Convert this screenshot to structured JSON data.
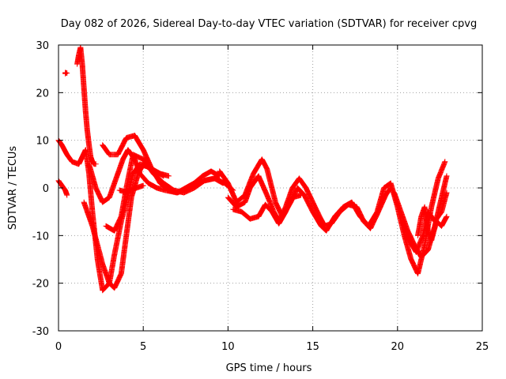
{
  "chart_data": {
    "type": "scatter",
    "title": "Day 082 of 2026, Sidereal Day-to-day VTEC variation (SDTVAR) for receiver cpvg",
    "xlabel": "GPS time / hours",
    "ylabel": "SDTVAR / TECUs",
    "xlim": [
      0,
      25
    ],
    "ylim": [
      -30,
      30
    ],
    "xticks": [
      0,
      5,
      10,
      15,
      20,
      25
    ],
    "yticks": [
      -30,
      -20,
      -10,
      0,
      10,
      20,
      30
    ],
    "grid": true,
    "marker": "+",
    "color": "#ff0000",
    "series": [
      {
        "name": "trace-1",
        "x": [
          0.0,
          0.2,
          0.5,
          0.8,
          1.2,
          1.4,
          1.6,
          1.8,
          2.0,
          2.3,
          2.6,
          3.0,
          3.3,
          3.7,
          4.1,
          4.4,
          4.8,
          5.2,
          5.7,
          6.2
        ],
        "y": [
          10.0,
          9.0,
          7.0,
          5.5,
          5.0,
          6.5,
          8.0,
          3.0,
          -5.0,
          -15.0,
          -21.5,
          -20.0,
          -14.0,
          -7.0,
          -1.5,
          3.0,
          5.0,
          4.5,
          3.5,
          2.5
        ]
      },
      {
        "name": "trace-2",
        "x": [
          0.0,
          0.2,
          0.4,
          0.5
        ],
        "y": [
          1.5,
          0.5,
          -0.5,
          -1.5
        ]
      },
      {
        "name": "trace-3",
        "x": [
          1.1,
          1.2,
          1.3,
          1.4,
          1.5,
          1.6,
          1.7,
          1.8,
          1.9,
          2.0,
          2.1,
          2.2
        ],
        "y": [
          26.0,
          28.0,
          29.5,
          26.0,
          21.0,
          16.0,
          12.0,
          9.0,
          6.5,
          5.5,
          5.0,
          5.0
        ]
      },
      {
        "name": "trace-4",
        "x": [
          1.5,
          1.7,
          2.0,
          2.3,
          2.6,
          3.0,
          3.3,
          3.7,
          4.0,
          4.3,
          4.7,
          5.0,
          5.5,
          6.0,
          6.5
        ],
        "y": [
          -3.0,
          -5.0,
          -8.0,
          -12.0,
          -16.0,
          -20.0,
          -21.0,
          -18.0,
          -10.0,
          -2.0,
          3.0,
          5.0,
          4.0,
          3.0,
          2.5
        ]
      },
      {
        "name": "trace-5",
        "x": [
          1.8,
          2.2,
          2.6,
          3.0,
          3.4,
          3.8,
          4.1,
          4.5,
          4.8,
          5.3,
          5.8,
          6.3,
          7.0,
          7.8,
          8.5,
          9.2,
          9.8,
          10.3
        ],
        "y": [
          5.0,
          0.0,
          -3.0,
          -2.0,
          2.0,
          6.0,
          8.0,
          6.0,
          3.0,
          1.0,
          0.0,
          -0.5,
          -1.0,
          0.0,
          1.5,
          2.0,
          1.0,
          -0.5
        ]
      },
      {
        "name": "trace-6",
        "x": [
          2.6,
          3.0,
          3.5,
          4.0,
          4.5,
          5.0,
          5.5,
          6.0,
          6.5,
          7.0,
          7.5,
          8.0,
          8.5,
          9.0,
          9.5
        ],
        "y": [
          9.0,
          7.0,
          7.0,
          10.5,
          11.0,
          8.0,
          4.0,
          1.0,
          -0.5,
          -1.0,
          0.0,
          1.0,
          2.5,
          3.5,
          2.5
        ]
      },
      {
        "name": "trace-7",
        "x": [
          2.8,
          3.3,
          3.7,
          4.0,
          4.4,
          5.0,
          5.6,
          6.2,
          6.8,
          7.4,
          8.0,
          8.6,
          9.2,
          9.7
        ],
        "y": [
          -8.0,
          -9.0,
          -6.0,
          0.0,
          7.0,
          6.0,
          3.0,
          1.0,
          -0.5,
          -1.0,
          0.0,
          1.5,
          2.0,
          1.0
        ]
      },
      {
        "name": "trace-8",
        "x": [
          3.6,
          3.9,
          4.2,
          4.6,
          5.0
        ],
        "y": [
          -0.5,
          -0.8,
          -0.5,
          0.0,
          0.5
        ]
      },
      {
        "name": "trace-9",
        "x": [
          9.5,
          10.0,
          10.5,
          11.0,
          11.5,
          12.0,
          12.3,
          12.8,
          13.2,
          13.7,
          14.1,
          14.5,
          15.0,
          15.5,
          15.8,
          16.3,
          16.8,
          17.3,
          17.8,
          18.3,
          18.8,
          19.2,
          19.6,
          20.0,
          20.4,
          20.8,
          21.2,
          21.6,
          22.0,
          22.4,
          22.8
        ],
        "y": [
          3.5,
          1.0,
          -3.0,
          -1.5,
          3.0,
          6.0,
          4.0,
          -3.0,
          -6.0,
          -3.0,
          0.0,
          -1.5,
          -5.0,
          -8.0,
          -9.0,
          -6.0,
          -4.0,
          -3.0,
          -6.0,
          -8.0,
          -5.0,
          0.0,
          1.0,
          -4.0,
          -10.0,
          -15.0,
          -18.0,
          -12.0,
          -4.0,
          2.0,
          5.5
        ]
      },
      {
        "name": "trace-10",
        "x": [
          10.0,
          10.5,
          11.0,
          11.3,
          11.8,
          12.3,
          12.7,
          13.0,
          13.4,
          13.8,
          14.2,
          14.6,
          15.0,
          15.4,
          15.7,
          16.1,
          16.6,
          17.1,
          17.6,
          18.0,
          18.4,
          18.8,
          19.3,
          19.6
        ],
        "y": [
          -2.0,
          -4.0,
          -3.0,
          0.0,
          2.5,
          -1.5,
          -5.0,
          -7.0,
          -4.0,
          0.0,
          2.0,
          0.0,
          -3.0,
          -6.0,
          -8.0,
          -7.5,
          -5.0,
          -3.5,
          -4.0,
          -7.0,
          -8.5,
          -5.5,
          -1.5,
          0.0
        ]
      },
      {
        "name": "trace-11",
        "x": [
          10.3,
          10.8,
          11.3,
          11.8,
          12.2,
          12.6,
          13.0,
          13.4,
          13.8,
          14.3
        ],
        "y": [
          -4.5,
          -5.0,
          -6.5,
          -6.0,
          -3.5,
          -5.0,
          -7.5,
          -5.0,
          -2.0,
          -1.5
        ]
      },
      {
        "name": "trace-12",
        "x": [
          19.8,
          20.2,
          20.6,
          21.0,
          21.4,
          21.8,
          22.2,
          22.6,
          22.9
        ],
        "y": [
          -1.0,
          -5.0,
          -9.0,
          -12.0,
          -14.5,
          -13.0,
          -8.0,
          -2.0,
          2.5
        ]
      },
      {
        "name": "trace-13",
        "x": [
          20.3,
          20.7,
          21.1,
          21.5,
          21.8,
          22.2,
          22.6,
          22.9
        ],
        "y": [
          -7.0,
          -11.0,
          -13.5,
          -10.0,
          -5.0,
          -7.0,
          -5.0,
          -1.0
        ]
      },
      {
        "name": "trace-14",
        "x": [
          21.2,
          21.4,
          21.6,
          21.8,
          22.0,
          22.3,
          22.6,
          22.9
        ],
        "y": [
          -10.0,
          -6.0,
          -4.0,
          -9.0,
          -11.0,
          -7.0,
          -8.0,
          -6.0
        ]
      },
      {
        "name": "trace-15",
        "x": [
          0.4,
          0.4,
          0.5
        ],
        "y": [
          24.0,
          24.2,
          24.1
        ]
      }
    ]
  }
}
